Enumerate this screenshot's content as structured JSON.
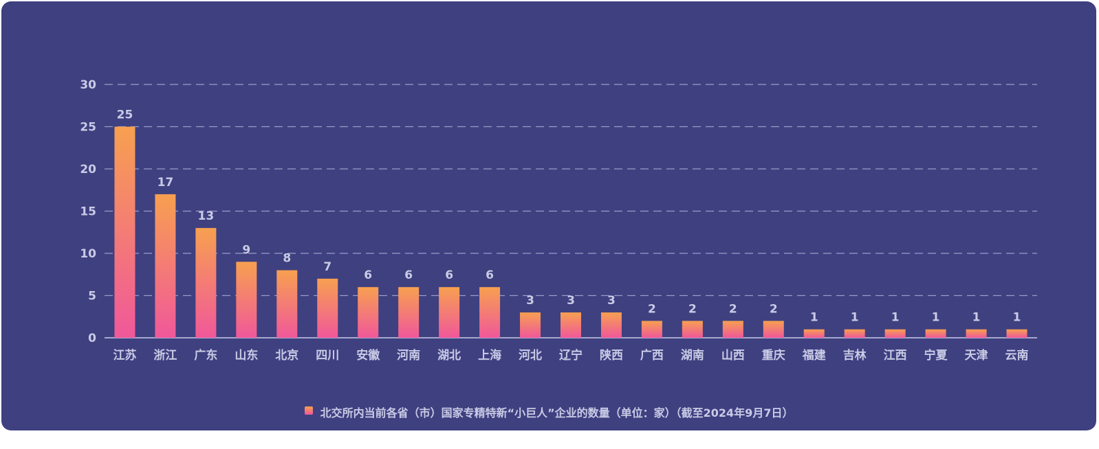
{
  "chart_data": {
    "type": "bar",
    "categories": [
      "江苏",
      "浙江",
      "广东",
      "山东",
      "北京",
      "四川",
      "安徽",
      "河南",
      "湖北",
      "上海",
      "河北",
      "辽宁",
      "陕西",
      "广西",
      "湖南",
      "山西",
      "重庆",
      "福建",
      "吉林",
      "江西",
      "宁夏",
      "天津",
      "云南"
    ],
    "series": [
      {
        "name": "北交所内当前各省（市）国家专精特新“小巨人”企业的数量（单位：家）（截至2024年9月7日）",
        "values": [
          25,
          17,
          13,
          9,
          8,
          7,
          6,
          6,
          6,
          6,
          3,
          3,
          3,
          2,
          2,
          2,
          2,
          1,
          1,
          1,
          1,
          1,
          1
        ]
      }
    ],
    "yticks": [
      "0",
      "5",
      "10",
      "15",
      "20",
      "25",
      "30"
    ],
    "ylim": [
      0,
      30
    ],
    "grid": true,
    "grid_style": "dashed",
    "legend_position": "bottom",
    "data_labels": true,
    "colors": {
      "background": "#3f4080",
      "bar_top": "#f7a050",
      "bar_bottom": "#f0589a",
      "text": "#c9cbe6",
      "grid": "#9a9cc8"
    }
  }
}
